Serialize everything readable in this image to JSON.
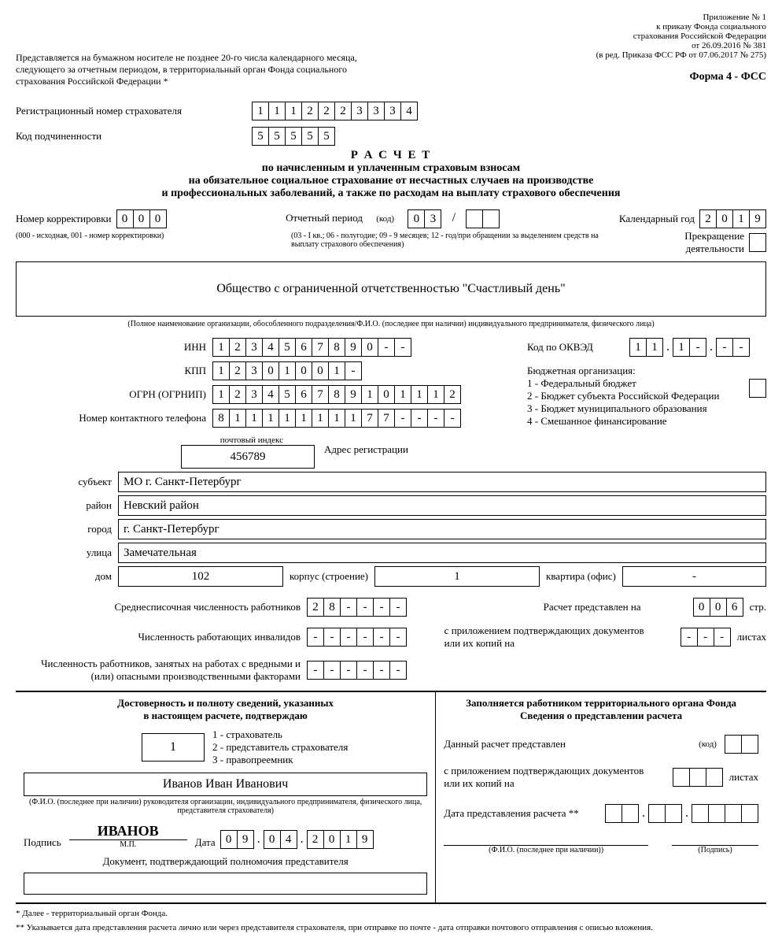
{
  "header": {
    "attachment_lines": [
      "Приложение № 1",
      "к приказу Фонда социального",
      "страхования Российской Федерации",
      "от 26.09.2016 № 381",
      "(в ред. Приказа ФСС РФ от 07.06.2017 № 275)"
    ],
    "submit_note_lines": [
      "Представляется на бумажном носителе не позднее 20-го числа календарного месяца,",
      "следующего за отчетным периодом, в территориальный орган Фонда социального",
      "страхования Российской Федерации *"
    ],
    "form_code": "Форма 4 - ФСС"
  },
  "reg": {
    "label_reg": "Регистрационный номер страхователя",
    "reg_digits": [
      "1",
      "1",
      "1",
      "2",
      "2",
      "2",
      "3",
      "3",
      "3",
      "4"
    ],
    "label_sub": "Код подчиненности",
    "sub_digits": [
      "5",
      "5",
      "5",
      "5",
      "5"
    ]
  },
  "title": {
    "t1": "Р А С Ч Е Т",
    "t2": "по начисленным и уплаченным страховым взносам",
    "t3": "на обязательное социальное страхование от несчастных случаев на производстве",
    "t4": "и профессиональных заболеваний, а также по расходам на выплату страхового обеспечения"
  },
  "midrow": {
    "corr_label": "Номер корректировки",
    "corr": [
      "0",
      "0",
      "0"
    ],
    "corr_hint": "(000 - исходная, 001 - номер корректировки)",
    "period_label": "Отчетный период",
    "code_word": "(код)",
    "period1": [
      "0",
      "3"
    ],
    "slash": "/",
    "period2": [
      "",
      ""
    ],
    "period_hint": "(03 - I кв.; 06 - полугодие; 09 - 9 месяцев; 12 - год/при обращении за выделением средств на выплату страхового обеспечения)",
    "year_label": "Календарный год",
    "year": [
      "2",
      "0",
      "1",
      "9"
    ],
    "stop_label": "Прекращение деятельности",
    "stop": [
      ""
    ]
  },
  "org": {
    "name": "Общество с ограниченной отчетственностью \"Счастливый день\"",
    "hint": "(Полное наименование организации, обособленного подразделения/Ф.И.О. (последнее при наличии) индивидуального предпринимателя, физического лица)"
  },
  "ids": {
    "inn_label": "ИНН",
    "inn": [
      "1",
      "2",
      "3",
      "4",
      "5",
      "6",
      "7",
      "8",
      "9",
      "0",
      "-",
      "-"
    ],
    "kpp_label": "КПП",
    "kpp": [
      "1",
      "2",
      "3",
      "0",
      "1",
      "0",
      "0",
      "1",
      "-"
    ],
    "ogrn_label": "ОГРН (ОГРНИП)",
    "ogrn": [
      "1",
      "2",
      "3",
      "4",
      "5",
      "6",
      "7",
      "8",
      "9",
      "1",
      "0",
      "1",
      "1",
      "1",
      "2"
    ],
    "phone_label": "Номер контактного телефона",
    "phone": [
      "8",
      "1",
      "1",
      "1",
      "1",
      "1",
      "1",
      "1",
      "1",
      "7",
      "7",
      "-",
      "-",
      "-",
      "-"
    ],
    "okved_label": "Код по ОКВЭД",
    "okved_parts": {
      "p1": [
        "1",
        "1"
      ],
      "dot1": ".",
      "p2": [
        "1",
        "-"
      ],
      "dot2": ".",
      "p3": [
        "-",
        "-"
      ]
    },
    "budget_title": "Бюджетная организация:",
    "budget_lines": [
      "1 - Федеральный бюджет",
      "2 - Бюджет субъекта Российской Федерации",
      "3 - Бюджет муниципального образования",
      "4 - Смешанное финансирование"
    ],
    "budget_cell": [
      ""
    ]
  },
  "addr": {
    "zip_label": "почтовый индекс",
    "zip": "456789",
    "addr_label": "Адрес регистрации",
    "subject_l": "субъект",
    "subject": "МО г. Санкт-Петербург",
    "district_l": "район",
    "district": "Невский район",
    "city_l": "город",
    "city": "г. Санкт-Петербург",
    "street_l": "улица",
    "street": "Замечательная",
    "house_l": "дом",
    "house": "102",
    "building_l": "корпус (строение)",
    "building": "1",
    "flat_l": "квартира (офис)",
    "flat": "-"
  },
  "counts": {
    "avg_label": "Среднесписочная численность работников",
    "avg": [
      "2",
      "8",
      "-",
      "-",
      "-",
      "-"
    ],
    "inv_label": "Численность работающих инвалидов",
    "inv": [
      "-",
      "-",
      "-",
      "-",
      "-",
      "-"
    ],
    "harm_label1": "Численность работников, занятых на работах с вредными и",
    "harm_label2": "(или) опасными производственными факторами",
    "harm": [
      "-",
      "-",
      "-",
      "-",
      "-",
      "-"
    ],
    "pages_label": "Расчет представлен на",
    "pages": [
      "0",
      "0",
      "6"
    ],
    "pages_suffix": "стр.",
    "docs_label1": "с приложением подтверждающих документов",
    "docs_label2": "или их копий на",
    "docs": [
      "-",
      "-",
      "-"
    ],
    "docs_suffix": "листах"
  },
  "sign_left": {
    "title1": "Достоверность и полноту сведений, указанных",
    "title2": "в настоящем расчете, подтверждаю",
    "who_digit": "1",
    "who_lines": [
      "1 - страхователь",
      "2 - представитель страхователя",
      "3 - правопреемник"
    ],
    "fio": "Иванов Иван Иванович",
    "fio_hint": "(Ф.И.О. (последнее при наличии) руководителя организации, индивидуального предпринимателя, физического лица, представителя страхователя)",
    "sign_label": "Подпись",
    "sign_value": "ИВАНОВ",
    "mp": "М.П.",
    "date_label": "Дата",
    "date": [
      "0",
      "9",
      ".",
      "0",
      "4",
      ".",
      "2",
      "0",
      "1",
      "9"
    ],
    "doc_label": "Документ, подтверждающий полномочия представителя"
  },
  "sign_right": {
    "title1": "Заполняется работником территориального органа Фонда",
    "title2": "Сведения о представлении расчета",
    "l1": "Данный расчет представлен",
    "code_word": "(код)",
    "code_cells": [
      "",
      ""
    ],
    "l2a": "с приложением подтверждающих документов",
    "l2b": "или их копий на",
    "sheets": [
      "",
      "",
      ""
    ],
    "sheets_suffix": "листах",
    "l3": "Дата представления расчета **",
    "date": [
      "",
      "",
      ".",
      "",
      "",
      ".",
      "",
      "",
      "",
      ""
    ],
    "fio_hint": "(Ф.И.О. (последнее при наличии))",
    "sign_hint": "(Подпись)"
  },
  "footnotes": {
    "f1": "*   Далее - территориальный орган Фонда.",
    "f2": "**  Указывается дата представления расчета лично или через представителя страхователя, при отправке по почте - дата отправки почтового отправления с описью вложения."
  }
}
